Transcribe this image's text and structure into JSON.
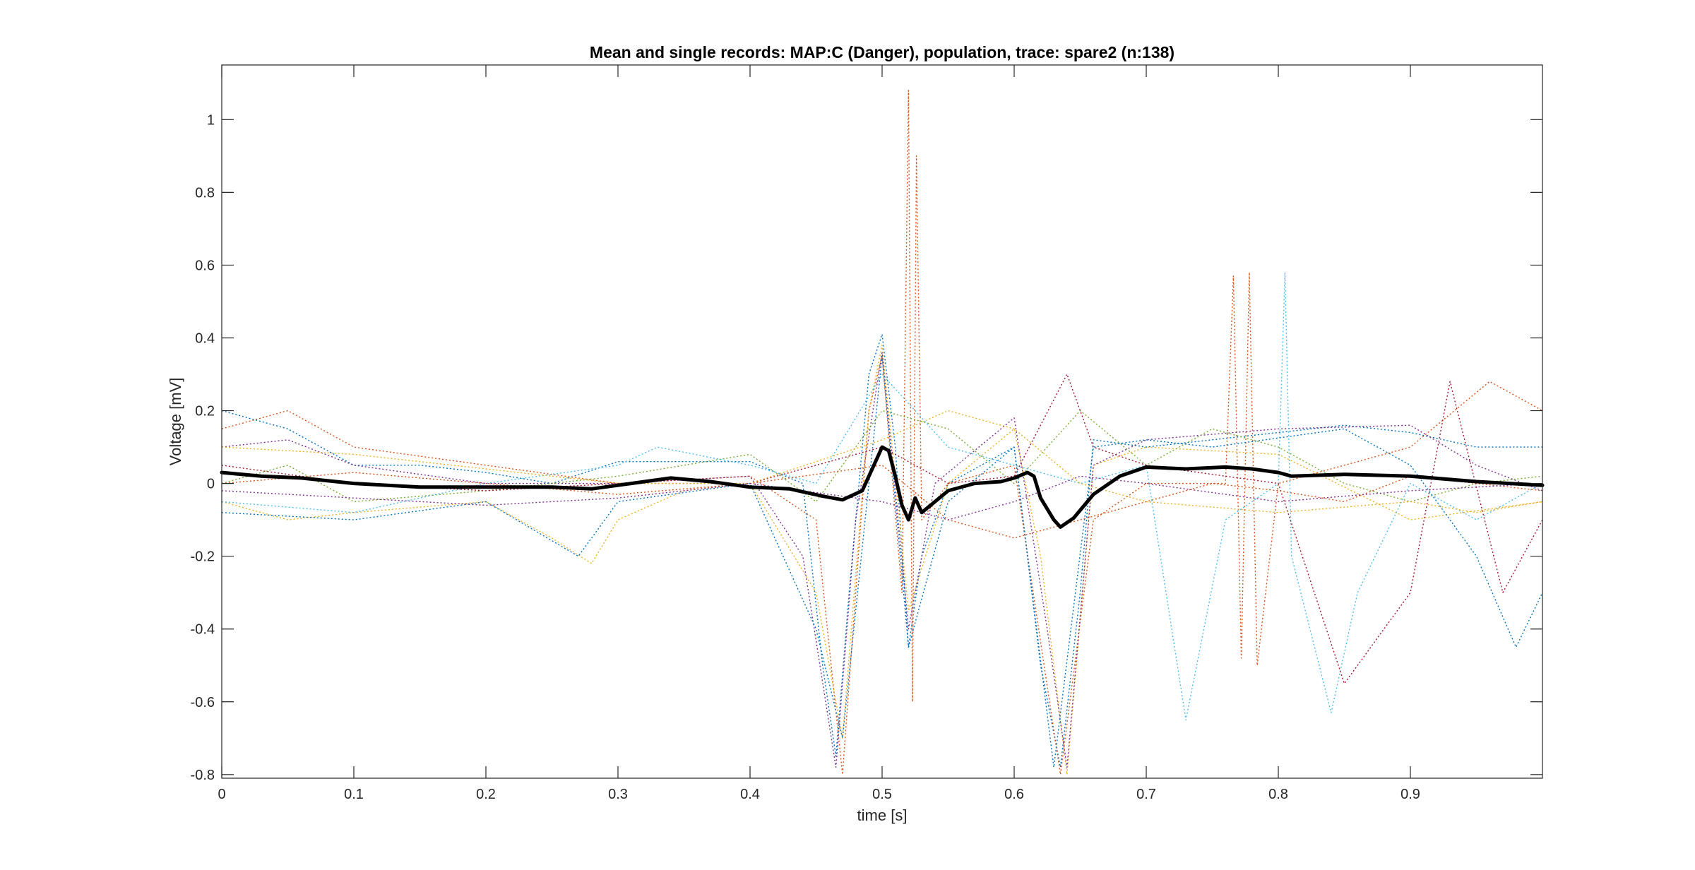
{
  "chart_data": {
    "type": "line",
    "title": "Mean and single records: MAP:C (Danger), population, trace: spare2 (n:138)",
    "xlabel": "time [s]",
    "ylabel": "Voltage [mV]",
    "xlim": [
      0,
      1.0
    ],
    "ylim": [
      -0.81,
      1.15
    ],
    "x_ticks": [
      0,
      0.1,
      0.2,
      0.3,
      0.4,
      0.5,
      0.6,
      0.7,
      0.8,
      0.9
    ],
    "x_tick_labels": [
      "0",
      "0.1",
      "0.2",
      "0.3",
      "0.4",
      "0.5",
      "0.6",
      "0.7",
      "0.8",
      "0.9"
    ],
    "y_ticks": [
      -0.8,
      -0.6,
      -0.4,
      -0.2,
      0,
      0.2,
      0.4,
      0.6,
      0.8,
      1
    ],
    "y_tick_labels": [
      "-0.8",
      "-0.6",
      "-0.4",
      "-0.2",
      "0",
      "0.2",
      "0.4",
      "0.6",
      "0.8",
      "1"
    ],
    "grid": false,
    "legend": "none",
    "box": true,
    "series": [
      {
        "style": "mean",
        "color": "#000000",
        "x": [
          0,
          0.03,
          0.06,
          0.1,
          0.15,
          0.2,
          0.25,
          0.28,
          0.31,
          0.34,
          0.37,
          0.4,
          0.43,
          0.455,
          0.47,
          0.485,
          0.495,
          0.5,
          0.505,
          0.51,
          0.515,
          0.52,
          0.525,
          0.53,
          0.54,
          0.55,
          0.57,
          0.59,
          0.6,
          0.61,
          0.615,
          0.62,
          0.63,
          0.635,
          0.645,
          0.66,
          0.68,
          0.7,
          0.73,
          0.76,
          0.78,
          0.8,
          0.81,
          0.85,
          0.9,
          0.95,
          1.0
        ],
        "y": [
          0.03,
          0.02,
          0.015,
          0.0,
          -0.01,
          -0.01,
          -0.01,
          -0.015,
          0.0,
          0.015,
          0.005,
          -0.01,
          -0.015,
          -0.035,
          -0.045,
          -0.02,
          0.06,
          0.1,
          0.09,
          0.02,
          -0.06,
          -0.1,
          -0.04,
          -0.08,
          -0.05,
          -0.02,
          0.0,
          0.005,
          0.015,
          0.03,
          0.02,
          -0.04,
          -0.1,
          -0.12,
          -0.095,
          -0.03,
          0.02,
          0.045,
          0.04,
          0.045,
          0.04,
          0.03,
          0.02,
          0.025,
          0.02,
          0.005,
          -0.005
        ]
      },
      {
        "style": "record",
        "color": "#0072BD",
        "x": [
          0,
          0.05,
          0.1,
          0.15,
          0.2,
          0.25,
          0.3,
          0.35,
          0.4,
          0.44,
          0.455,
          0.465,
          0.475,
          0.49,
          0.5,
          0.51,
          0.52,
          0.53,
          0.55,
          0.6,
          0.62,
          0.635,
          0.65,
          0.66,
          0.7,
          0.75,
          0.8,
          0.85,
          0.9,
          0.95,
          1.0
        ],
        "y": [
          0.2,
          0.15,
          0.05,
          0.05,
          0.03,
          0.0,
          0.06,
          0.06,
          0.06,
          0.0,
          -0.5,
          -0.75,
          -0.3,
          0.3,
          0.41,
          0.1,
          -0.45,
          -0.2,
          0.0,
          0.1,
          -0.5,
          -0.78,
          -0.3,
          0.12,
          0.1,
          0.12,
          0.14,
          0.16,
          0.14,
          0.1,
          0.1
        ]
      },
      {
        "style": "record",
        "color": "#D95319",
        "x": [
          0,
          0.05,
          0.1,
          0.2,
          0.3,
          0.4,
          0.45,
          0.47,
          0.49,
          0.5,
          0.515,
          0.52,
          0.523,
          0.526,
          0.53,
          0.55,
          0.6,
          0.635,
          0.66,
          0.7,
          0.76,
          0.766,
          0.772,
          0.778,
          0.784,
          0.8,
          0.85,
          0.9,
          0.96,
          1.0
        ],
        "y": [
          0.15,
          0.2,
          0.1,
          0.05,
          0.0,
          0.02,
          -0.1,
          -0.8,
          0.2,
          0.35,
          -0.3,
          1.08,
          -0.6,
          0.9,
          -0.1,
          0.0,
          0.05,
          -0.8,
          -0.1,
          0.0,
          0.0,
          0.57,
          -0.48,
          0.58,
          -0.5,
          0.0,
          0.05,
          0.1,
          0.28,
          0.2
        ]
      },
      {
        "style": "record",
        "color": "#EDB120",
        "x": [
          0,
          0.05,
          0.1,
          0.2,
          0.25,
          0.28,
          0.3,
          0.35,
          0.4,
          0.45,
          0.47,
          0.49,
          0.5,
          0.52,
          0.55,
          0.6,
          0.62,
          0.64,
          0.66,
          0.7,
          0.8,
          0.9,
          1.0
        ],
        "y": [
          -0.05,
          -0.1,
          -0.08,
          -0.05,
          -0.15,
          -0.22,
          -0.1,
          -0.02,
          0.0,
          -0.3,
          -0.7,
          0.2,
          0.38,
          -0.35,
          0.0,
          0.15,
          -0.2,
          -0.8,
          0.05,
          0.1,
          0.08,
          -0.1,
          -0.05
        ]
      },
      {
        "style": "record",
        "color": "#7E2F8E",
        "x": [
          0,
          0.05,
          0.1,
          0.2,
          0.3,
          0.4,
          0.44,
          0.465,
          0.48,
          0.5,
          0.52,
          0.54,
          0.6,
          0.625,
          0.64,
          0.66,
          0.7,
          0.8,
          0.9,
          0.95,
          1.0
        ],
        "y": [
          0.1,
          0.12,
          0.05,
          0.0,
          0.0,
          0.02,
          -0.2,
          -0.78,
          -0.1,
          0.36,
          -0.4,
          0.0,
          0.18,
          -0.4,
          -0.78,
          0.05,
          0.12,
          0.15,
          0.16,
          0.05,
          -0.02
        ]
      },
      {
        "style": "record",
        "color": "#77AC30",
        "x": [
          0,
          0.05,
          0.1,
          0.2,
          0.3,
          0.4,
          0.45,
          0.5,
          0.55,
          0.6,
          0.65,
          0.7,
          0.75,
          0.8,
          0.85,
          0.9,
          0.95,
          1.0
        ],
        "y": [
          0.0,
          0.05,
          -0.05,
          -0.02,
          0.02,
          0.08,
          -0.05,
          0.2,
          0.15,
          0.0,
          0.2,
          0.05,
          0.15,
          0.1,
          0.0,
          -0.05,
          0.0,
          0.02
        ]
      },
      {
        "style": "record",
        "color": "#4DBEEE",
        "x": [
          0,
          0.1,
          0.2,
          0.3,
          0.33,
          0.4,
          0.45,
          0.5,
          0.55,
          0.6,
          0.65,
          0.7,
          0.73,
          0.76,
          0.8,
          0.805,
          0.81,
          0.84,
          0.86,
          0.9,
          0.95,
          1.0
        ],
        "y": [
          -0.05,
          -0.08,
          0.0,
          0.05,
          0.1,
          0.05,
          0.0,
          0.3,
          0.1,
          0.05,
          0.0,
          0.05,
          -0.65,
          -0.1,
          0.0,
          0.58,
          -0.2,
          -0.63,
          -0.3,
          0.0,
          -0.1,
          0.0
        ]
      },
      {
        "style": "record",
        "color": "#A2142F",
        "x": [
          0,
          0.1,
          0.2,
          0.3,
          0.4,
          0.45,
          0.5,
          0.55,
          0.6,
          0.64,
          0.66,
          0.7,
          0.8,
          0.85,
          0.9,
          0.93,
          0.97,
          1.0
        ],
        "y": [
          0.05,
          0.0,
          -0.02,
          0.0,
          0.0,
          0.05,
          0.1,
          0.0,
          0.02,
          0.3,
          0.1,
          0.05,
          0.0,
          -0.55,
          -0.3,
          0.28,
          -0.3,
          -0.1
        ]
      },
      {
        "style": "record",
        "color": "#0072BD",
        "x": [
          0,
          0.1,
          0.2,
          0.27,
          0.3,
          0.4,
          0.45,
          0.47,
          0.5,
          0.52,
          0.55,
          0.6,
          0.63,
          0.66,
          0.7,
          0.75,
          0.85,
          0.9,
          0.95,
          0.98,
          1.0
        ],
        "y": [
          -0.08,
          -0.1,
          -0.05,
          -0.2,
          -0.05,
          0.0,
          -0.4,
          -0.7,
          0.35,
          -0.45,
          -0.05,
          0.1,
          -0.78,
          0.1,
          0.12,
          0.1,
          0.15,
          0.05,
          -0.2,
          -0.45,
          -0.3
        ]
      },
      {
        "style": "record",
        "color": "#D95319",
        "x": [
          0,
          0.1,
          0.2,
          0.3,
          0.4,
          0.5,
          0.55,
          0.6,
          0.65,
          0.7,
          0.75,
          0.8,
          0.85,
          0.9,
          0.95,
          1.0
        ],
        "y": [
          0.0,
          0.03,
          0.0,
          -0.03,
          0.0,
          0.05,
          -0.1,
          -0.15,
          -0.1,
          -0.05,
          0.0,
          -0.02,
          -0.05,
          0.02,
          0.0,
          -0.02
        ]
      },
      {
        "style": "record",
        "color": "#EDB120",
        "x": [
          0,
          0.1,
          0.2,
          0.3,
          0.4,
          0.5,
          0.55,
          0.6,
          0.65,
          0.7,
          0.8,
          0.9,
          0.95,
          1.0
        ],
        "y": [
          0.1,
          0.08,
          0.04,
          0.0,
          0.0,
          0.12,
          0.2,
          0.15,
          0.0,
          -0.05,
          -0.08,
          -0.05,
          -0.08,
          -0.05
        ]
      },
      {
        "style": "record",
        "color": "#7E2F8E",
        "x": [
          0,
          0.1,
          0.2,
          0.3,
          0.4,
          0.5,
          0.55,
          0.6,
          0.65,
          0.7,
          0.8,
          0.9,
          1.0
        ],
        "y": [
          -0.02,
          -0.04,
          -0.06,
          -0.04,
          0.0,
          -0.05,
          -0.1,
          -0.05,
          0.02,
          0.0,
          -0.05,
          -0.02,
          0.0
        ]
      }
    ]
  }
}
